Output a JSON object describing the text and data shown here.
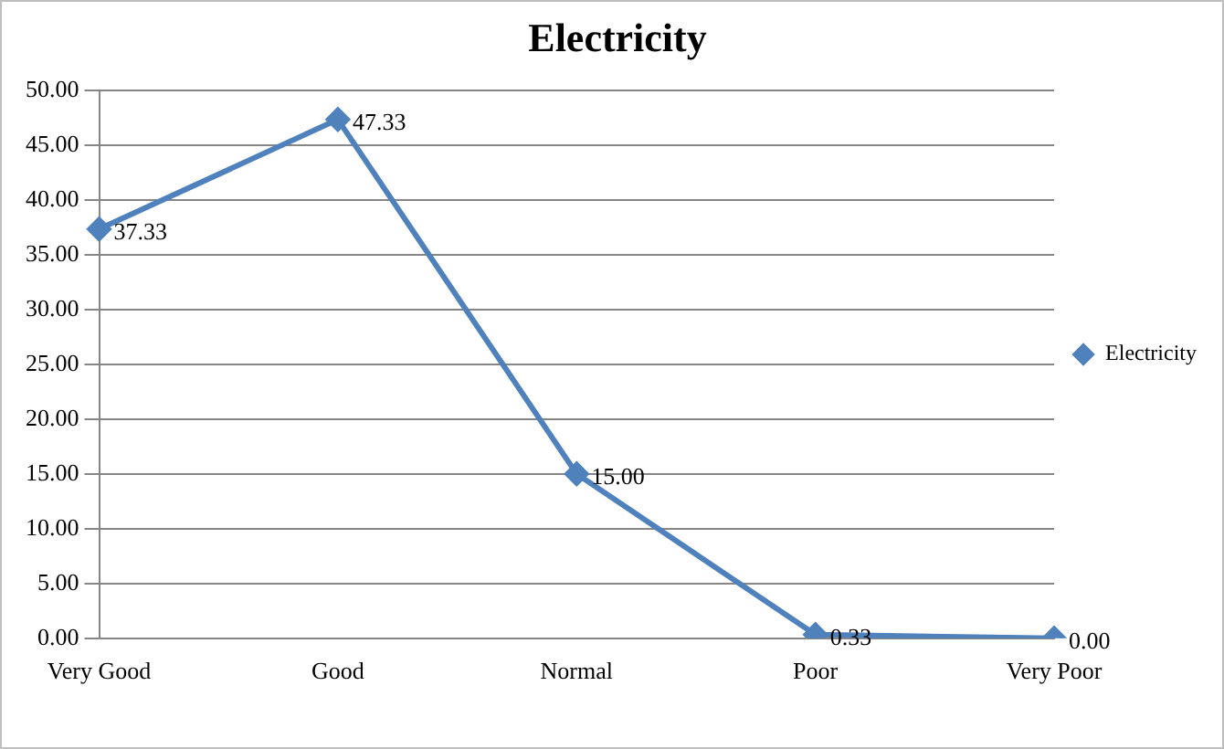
{
  "chart_data": {
    "type": "line",
    "title": "Electricity",
    "categories": [
      "Very Good",
      "Good",
      "Normal",
      "Poor",
      "Very Poor"
    ],
    "series": [
      {
        "name": "Electricity",
        "color": "#4f81bd",
        "values": [
          37.33,
          47.33,
          15.0,
          0.33,
          0.0
        ],
        "value_labels": [
          "37.33",
          "47.33",
          "15.00",
          "0.33",
          "0.00"
        ]
      }
    ],
    "ylim": [
      0,
      50
    ],
    "yticks": [
      {
        "value": 0,
        "label": "0.00"
      },
      {
        "value": 5,
        "label": "5.00"
      },
      {
        "value": 10,
        "label": "10.00"
      },
      {
        "value": 15,
        "label": "15.00"
      },
      {
        "value": 20,
        "label": "20.00"
      },
      {
        "value": 25,
        "label": "25.00"
      },
      {
        "value": 30,
        "label": "30.00"
      },
      {
        "value": 35,
        "label": "35.00"
      },
      {
        "value": 40,
        "label": "40.00"
      },
      {
        "value": 45,
        "label": "45.00"
      },
      {
        "value": 50,
        "label": "50.00"
      }
    ],
    "grid": "y",
    "legend": "right",
    "marker": "diamond",
    "line_style": "solid"
  }
}
